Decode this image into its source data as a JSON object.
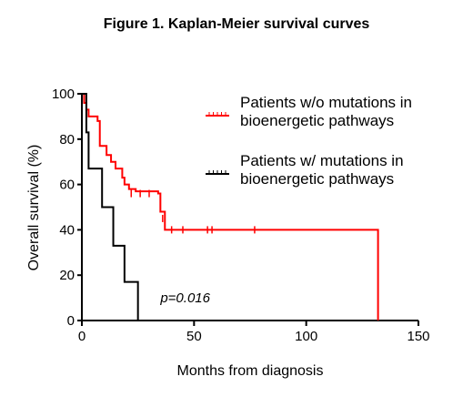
{
  "title": "Figure 1. Kaplan-Meier survival curves",
  "colors": {
    "series_red": "#ff0000",
    "series_black": "#000000",
    "axis": "#000000"
  },
  "chart_data": {
    "type": "line",
    "step": true,
    "title": "Figure 1. Kaplan-Meier survival curves",
    "xlabel": "Months from diagnosis",
    "ylabel": "Overall survival (%)",
    "xlim": [
      0,
      150
    ],
    "ylim": [
      0,
      100
    ],
    "xticks": [
      0,
      50,
      100,
      150
    ],
    "yticks": [
      0,
      20,
      40,
      60,
      80,
      100
    ],
    "grid": false,
    "legend_position": "top-right",
    "annotations": [
      {
        "text": "p=0.016",
        "x": 35,
        "y": 8
      }
    ],
    "series": [
      {
        "name": "Patients w/o mutations in bioenergetic pathways",
        "color": "#ff0000",
        "steps": [
          [
            0,
            100
          ],
          [
            1,
            96
          ],
          [
            2,
            93
          ],
          [
            3,
            90
          ],
          [
            7,
            88
          ],
          [
            8,
            77
          ],
          [
            11,
            73
          ],
          [
            13,
            70
          ],
          [
            15,
            67
          ],
          [
            18,
            63
          ],
          [
            19,
            60
          ],
          [
            21,
            58
          ],
          [
            24,
            57
          ],
          [
            34,
            56
          ],
          [
            35,
            48
          ],
          [
            37,
            40
          ],
          [
            132,
            40
          ],
          [
            132,
            0
          ]
        ],
        "censored": [
          [
            22,
            56
          ],
          [
            26,
            56
          ],
          [
            30,
            56
          ],
          [
            36,
            45
          ],
          [
            40,
            40
          ],
          [
            45,
            40
          ],
          [
            56,
            40
          ],
          [
            58,
            40
          ],
          [
            77,
            40
          ]
        ]
      },
      {
        "name": "Patients w/ mutations in bioenergetic pathways",
        "color": "#000000",
        "steps": [
          [
            0,
            100
          ],
          [
            2,
            83
          ],
          [
            3,
            67
          ],
          [
            9,
            50
          ],
          [
            14,
            33
          ],
          [
            19,
            17
          ],
          [
            25,
            0
          ]
        ],
        "censored": []
      }
    ]
  }
}
